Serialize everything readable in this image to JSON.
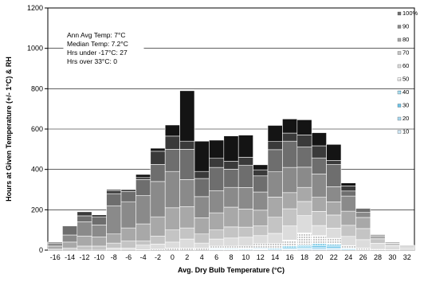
{
  "chart_data": {
    "type": "bar",
    "stacked": true,
    "xlabel": "Avg. Dry Bulb Temperature (°C)",
    "ylabel": "Hours at Given Temperature (+/- 1°C) & RH",
    "ylim": [
      0,
      1200
    ],
    "yticks": [
      0,
      200,
      400,
      600,
      800,
      1000,
      1200
    ],
    "categories": [
      "-16",
      "-14",
      "-12",
      "-10",
      "-8",
      "-6",
      "-4",
      "-2",
      "0",
      "2",
      "4",
      "6",
      "8",
      "10",
      "12",
      "14",
      "16",
      "18",
      "20",
      "22",
      "24",
      "26",
      "28",
      "30",
      "32"
    ],
    "grid": true,
    "legend_position": "right",
    "annotations": [
      "Ann Avg Temp: 7°C",
      "Median Temp: 7.2°C",
      "Hrs under -17°C: 27",
      "Hrs over 33°C: 0"
    ],
    "series": [
      {
        "name": "10",
        "color": "#cfe8f7",
        "values": [
          0,
          0,
          0,
          0,
          0,
          0,
          0,
          0,
          0,
          0,
          0,
          2,
          0,
          0,
          2,
          0,
          3,
          5,
          5,
          5,
          0,
          0,
          0,
          0,
          0
        ]
      },
      {
        "name": "20",
        "color": "#a8d8f0",
        "values": [
          0,
          0,
          0,
          0,
          0,
          0,
          0,
          0,
          0,
          0,
          0,
          3,
          2,
          0,
          3,
          0,
          4,
          5,
          8,
          6,
          0,
          0,
          0,
          0,
          0
        ]
      },
      {
        "name": "30",
        "color": "#6cc4e8",
        "values": [
          0,
          0,
          0,
          0,
          0,
          0,
          0,
          0,
          0,
          0,
          0,
          3,
          2,
          2,
          2,
          3,
          5,
          6,
          9,
          8,
          4,
          0,
          0,
          0,
          0
        ]
      },
      {
        "name": "40",
        "color": "#33b0d8",
        "values": [
          0,
          0,
          0,
          0,
          0,
          0,
          0,
          0,
          0,
          0,
          0,
          3,
          4,
          4,
          5,
          5,
          8,
          10,
          10,
          10,
          4,
          2,
          0,
          0,
          0
        ]
      },
      {
        "name": "50",
        "color": "#f0f0f0",
        "values": [
          0,
          0,
          0,
          0,
          0,
          0,
          2,
          5,
          10,
          10,
          10,
          9,
          12,
          15,
          20,
          25,
          30,
          60,
          40,
          30,
          15,
          8,
          4,
          2,
          0
        ]
      },
      {
        "name": "60",
        "color": "#dcdcdc",
        "values": [
          0,
          0,
          0,
          0,
          10,
          10,
          23,
          25,
          30,
          45,
          25,
          35,
          40,
          43,
          40,
          50,
          70,
          85,
          50,
          50,
          45,
          42,
          30,
          20,
          12
        ]
      },
      {
        "name": "70",
        "color": "#c4c4c4",
        "values": [
          5,
          10,
          20,
          20,
          25,
          35,
          20,
          40,
          60,
          55,
          45,
          45,
          55,
          50,
          48,
          80,
          85,
          70,
          70,
          65,
          55,
          55,
          22,
          12,
          8
        ]
      },
      {
        "name": "80",
        "color": "#a8a8a8",
        "values": [
          15,
          30,
          50,
          45,
          45,
          65,
          85,
          95,
          110,
          105,
          80,
          85,
          98,
          90,
          78,
          100,
          80,
          70,
          70,
          65,
          70,
          55,
          15,
          6,
          4
        ]
      },
      {
        "name": "90",
        "color": "#8a8a8a",
        "values": [
          15,
          35,
          70,
          60,
          140,
          130,
          140,
          175,
          180,
          135,
          105,
          110,
          98,
          106,
          90,
          125,
          125,
          100,
          115,
          75,
          75,
          25,
          6,
          0,
          0
        ]
      },
      {
        "name": "100%",
        "color": "#6e6e6e",
        "values": [
          5,
          45,
          30,
          40,
          60,
          50,
          80,
          85,
          110,
          150,
          90,
          115,
          90,
          110,
          80,
          110,
          130,
          100,
          80,
          110,
          25,
          20,
          0,
          0,
          0
        ]
      },
      {
        "name": "",
        "color": "#3a3a3a",
        "values": [
          0,
          0,
          20,
          10,
          15,
          10,
          10,
          65,
          65,
          40,
          35,
          45,
          40,
          40,
          30,
          40,
          40,
          60,
          60,
          20,
          25,
          0,
          0,
          0,
          0
        ]
      },
      {
        "name": "",
        "color": "#141414",
        "values": [
          0,
          0,
          0,
          0,
          5,
          0,
          15,
          15,
          55,
          250,
          150,
          90,
          125,
          110,
          25,
          80,
          70,
          75,
          65,
          80,
          15,
          0,
          0,
          0,
          0
        ]
      }
    ]
  }
}
